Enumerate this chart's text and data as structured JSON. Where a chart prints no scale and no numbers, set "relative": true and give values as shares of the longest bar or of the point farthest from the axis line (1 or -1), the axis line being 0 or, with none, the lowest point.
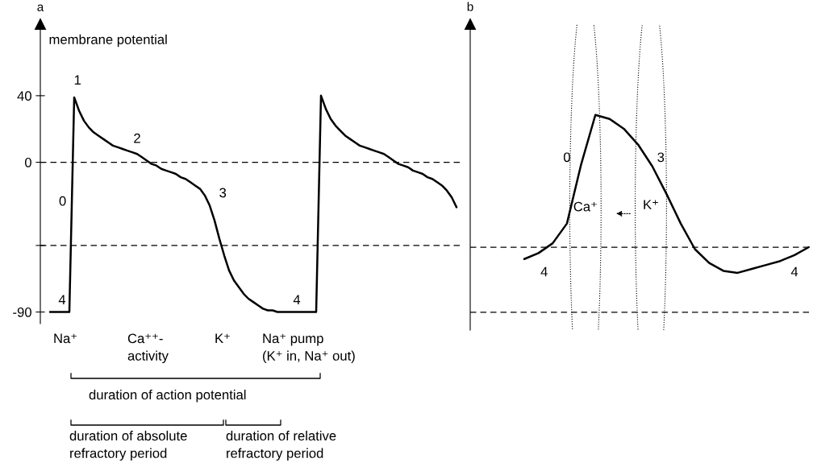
{
  "chart_data": [
    {
      "type": "line",
      "title": "a",
      "ylabel": "membrane potential",
      "categories": [
        null,
        null,
        null,
        null,
        null,
        null,
        null,
        null,
        null,
        null,
        null,
        null,
        null,
        null,
        null,
        null,
        null,
        null,
        null,
        null,
        null,
        null,
        null,
        null,
        null,
        null,
        null,
        null,
        null,
        null,
        null,
        null,
        null,
        null,
        null,
        null,
        null,
        null,
        null,
        null,
        null,
        null,
        null,
        null,
        null,
        null,
        null,
        null,
        null,
        null,
        null,
        null,
        null,
        null,
        null,
        null,
        null,
        null,
        null,
        null,
        null,
        null,
        null,
        null,
        null,
        null,
        null,
        null,
        null,
        null,
        null,
        null,
        null,
        null,
        null,
        null,
        null,
        null,
        null,
        null,
        null,
        null,
        null,
        null,
        null
      ],
      "series": [
        {
          "color": "#000000",
          "values": [
            -90,
            -90,
            -90,
            -90,
            -90,
            39,
            31,
            25,
            21,
            18,
            16,
            14,
            12,
            10,
            9,
            8,
            7,
            6,
            5,
            3,
            1,
            -1,
            -2,
            -4,
            -5,
            -6,
            -7,
            -9,
            -10,
            -12,
            -14,
            -16,
            -20,
            -26,
            -35,
            -46,
            -56,
            -65,
            -71,
            -75,
            -79,
            -82,
            -84,
            -86,
            -88,
            -89,
            -89,
            -90,
            -90,
            -90,
            -90,
            -90,
            -90,
            -90,
            -90,
            -90,
            40,
            32,
            26,
            22,
            19,
            16,
            14,
            12,
            10,
            9,
            8,
            7,
            6,
            5,
            3,
            1,
            -1,
            -2,
            -3,
            -5,
            -6,
            -7,
            -9,
            -10,
            -12,
            -14,
            -17,
            -21,
            -27
          ]
        }
      ],
      "ylim": [
        -97,
        83
      ],
      "yticks": [
        40,
        0,
        {
          "value": -50,
          "label": null
        },
        -90
      ],
      "tick_labels": "y",
      "grid": false,
      "ref_lines": [
        {
          "axis": "y",
          "value": 0,
          "line_style": "dashed",
          "color": "#000000"
        },
        {
          "axis": "y",
          "value": -50,
          "line_style": "dashed",
          "color": "#000000"
        }
      ],
      "annotations": [
        "1",
        "2",
        "3",
        "0",
        "4",
        "4",
        "Na⁺",
        "Ca⁺⁺-\nactivity",
        "K⁺",
        "Na⁺ pump\n(K⁺ in, Na⁺ out)",
        "duration of action potential",
        "duration of absolute\nrefractory period",
        "duration of relative\nrefractory period"
      ]
    },
    {
      "type": "line",
      "title": "b",
      "relative": true,
      "categories": [
        null,
        null,
        null,
        null,
        null,
        null,
        null,
        null,
        null,
        null,
        null,
        null,
        null,
        null,
        null,
        null,
        null,
        null,
        null,
        null,
        null
      ],
      "series": [
        {
          "color": "#000000",
          "values": [
            0.27,
            0.3,
            0.35,
            0.45,
            0.75,
            1,
            0.98,
            0.93,
            0.85,
            0.74,
            0.6,
            0.45,
            0.32,
            0.25,
            0.21,
            0.2,
            0.22,
            0.24,
            0.26,
            0.29,
            0.33
          ]
        }
      ],
      "tick_labels": false,
      "grid": false,
      "ref_lines": [
        {
          "axis": "y",
          "value": 0,
          "line_style": "dashed",
          "color": "#000000"
        },
        {
          "axis": "y",
          "value": 0.33,
          "line_style": "dashed",
          "color": "#000000"
        }
      ],
      "annotations": [
        "0",
        "3",
        "4",
        "4",
        "Ca⁺",
        "K⁺"
      ]
    }
  ]
}
